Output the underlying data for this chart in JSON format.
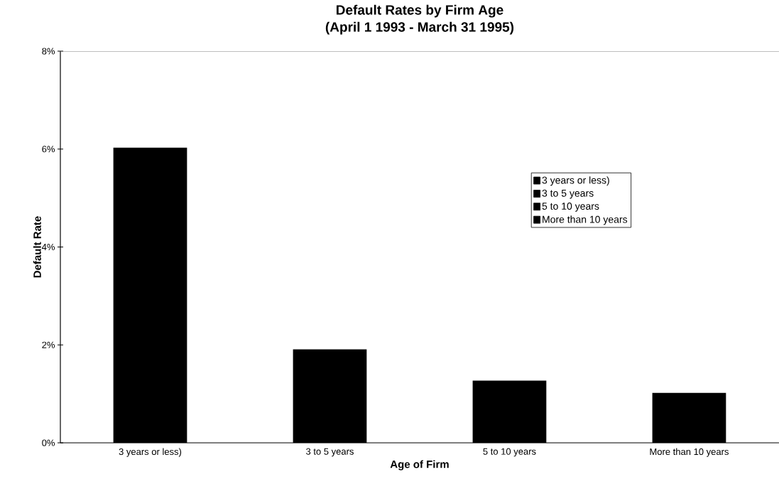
{
  "chart_data": {
    "type": "bar",
    "title": "Default Rates by Firm Age\n(April 1 1993 - March 31 1995)",
    "xlabel": "Age of Firm",
    "ylabel": "Default Rate",
    "categories": [
      "3 years or less)",
      "3 to 5 years",
      "5 to 10 years",
      "More than 10 years"
    ],
    "series": [
      {
        "name": "3 years or less)",
        "color": "#000000",
        "values": [
          6.03,
          null,
          null,
          null
        ]
      },
      {
        "name": "3 to 5 years",
        "color": "#000000",
        "values": [
          null,
          1.91,
          null,
          null
        ]
      },
      {
        "name": "5 to 10 years",
        "color": "#000000",
        "values": [
          null,
          null,
          1.27,
          null
        ]
      },
      {
        "name": "More than 10 years",
        "color": "#000000",
        "values": [
          null,
          null,
          null,
          1.02
        ]
      }
    ],
    "ylim": [
      0,
      8
    ],
    "yticks": [
      {
        "value": 0,
        "label": "0%"
      },
      {
        "value": 2,
        "label": "2%"
      },
      {
        "value": 4,
        "label": "4%"
      },
      {
        "value": 6,
        "label": "6%"
      },
      {
        "value": 8,
        "label": "8%"
      }
    ],
    "grid": false,
    "legend": "right"
  }
}
